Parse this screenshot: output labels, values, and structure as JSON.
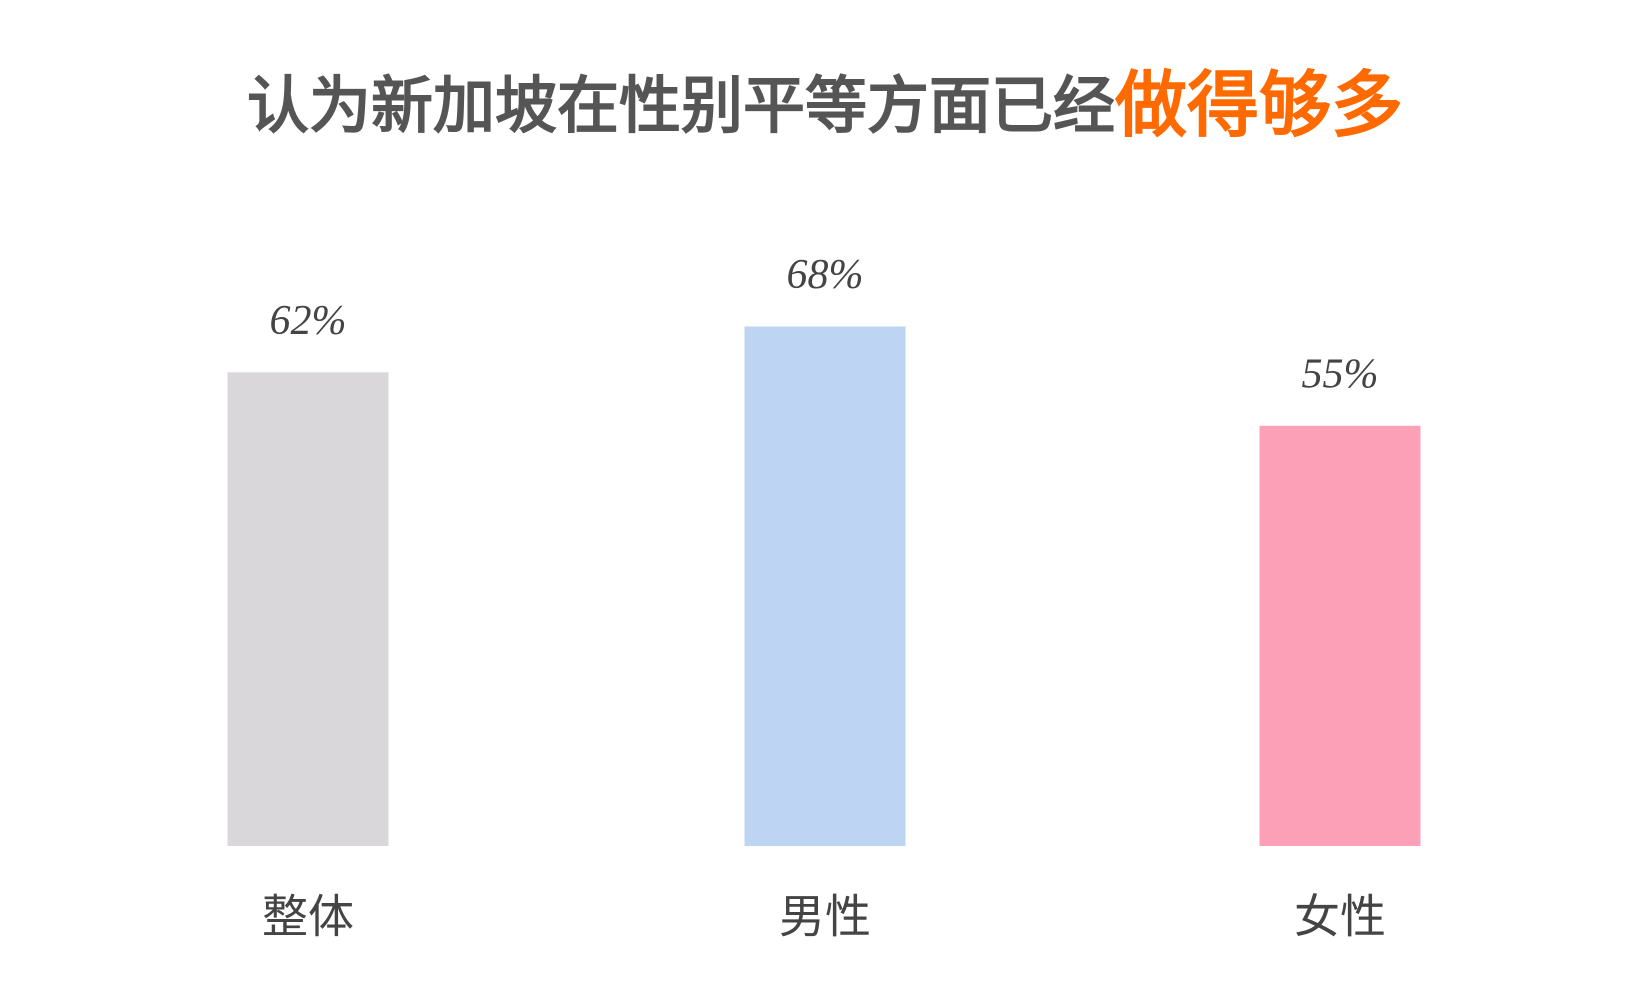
{
  "chart_data": {
    "type": "bar",
    "title": "认为新加坡在性别平等方面已经",
    "title_highlight": "做得够多",
    "categories": [
      "整体",
      "男性",
      "女性"
    ],
    "values": [
      62,
      68,
      55
    ],
    "value_labels": [
      "62%",
      "68%",
      "55%"
    ],
    "colors": [
      "#d9d7da",
      "#bdd5f2",
      "#fca0b8"
    ]
  }
}
